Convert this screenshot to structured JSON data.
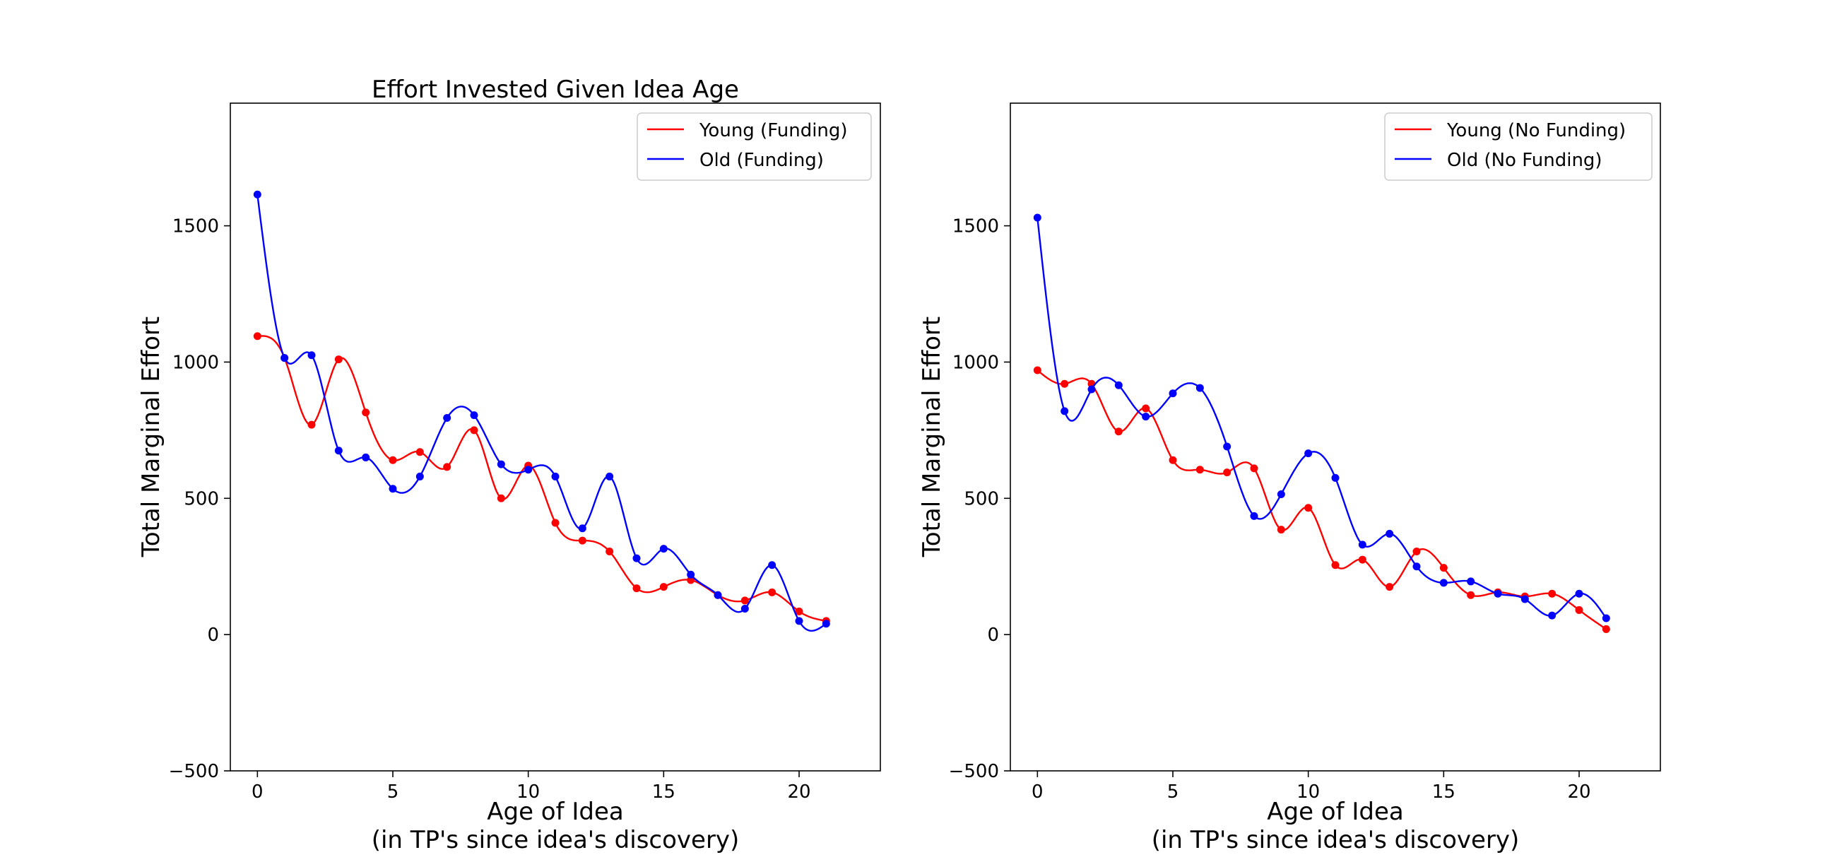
{
  "chart_data": [
    {
      "type": "line",
      "title": "Effort Invested Given Idea Age",
      "xlabel": "Age of Idea",
      "xlabel_sub": "(in TP's since idea's discovery)",
      "ylabel": "Total Marginal Effort",
      "xlim": [
        -1,
        23
      ],
      "ylim": [
        -500,
        1950
      ],
      "xticks": [
        0,
        5,
        10,
        15,
        20
      ],
      "yticks": [
        -500,
        0,
        500,
        1000,
        1500
      ],
      "x": [
        0,
        1,
        2,
        3,
        4,
        5,
        6,
        7,
        8,
        9,
        10,
        11,
        12,
        13,
        14,
        15,
        16,
        17,
        18,
        19,
        20,
        21
      ],
      "legend_position": "top-right",
      "grid": false,
      "series": [
        {
          "name": "Young (Funding)",
          "color": "#ff0000",
          "values": [
            1095,
            1015,
            770,
            1010,
            815,
            640,
            670,
            615,
            750,
            500,
            620,
            410,
            345,
            305,
            170,
            175,
            200,
            145,
            125,
            155,
            85,
            50
          ]
        },
        {
          "name": "Old (Funding)",
          "color": "#0000ff",
          "values": [
            1615,
            1015,
            1025,
            675,
            650,
            535,
            580,
            795,
            805,
            625,
            605,
            580,
            390,
            580,
            280,
            315,
            220,
            145,
            95,
            255,
            50,
            40
          ]
        }
      ]
    },
    {
      "type": "line",
      "title": "",
      "xlabel": "Age of Idea",
      "xlabel_sub": "(in TP's since idea's discovery)",
      "ylabel": "Total Marginal Effort",
      "xlim": [
        -1,
        23
      ],
      "ylim": [
        -500,
        1950
      ],
      "xticks": [
        0,
        5,
        10,
        15,
        20
      ],
      "yticks": [
        -500,
        0,
        500,
        1000,
        1500
      ],
      "x": [
        0,
        1,
        2,
        3,
        4,
        5,
        6,
        7,
        8,
        9,
        10,
        11,
        12,
        13,
        14,
        15,
        16,
        17,
        18,
        19,
        20,
        21
      ],
      "legend_position": "top-right",
      "grid": false,
      "series": [
        {
          "name": "Young (No Funding)",
          "color": "#ff0000",
          "values": [
            970,
            920,
            920,
            745,
            830,
            640,
            605,
            595,
            610,
            385,
            465,
            255,
            275,
            175,
            305,
            245,
            145,
            155,
            140,
            150,
            90,
            20
          ]
        },
        {
          "name": "Old (No Funding)",
          "color": "#0000ff",
          "values": [
            1530,
            820,
            900,
            915,
            800,
            885,
            905,
            690,
            435,
            515,
            665,
            575,
            330,
            370,
            250,
            190,
            195,
            150,
            130,
            70,
            150,
            60
          ]
        }
      ]
    }
  ]
}
